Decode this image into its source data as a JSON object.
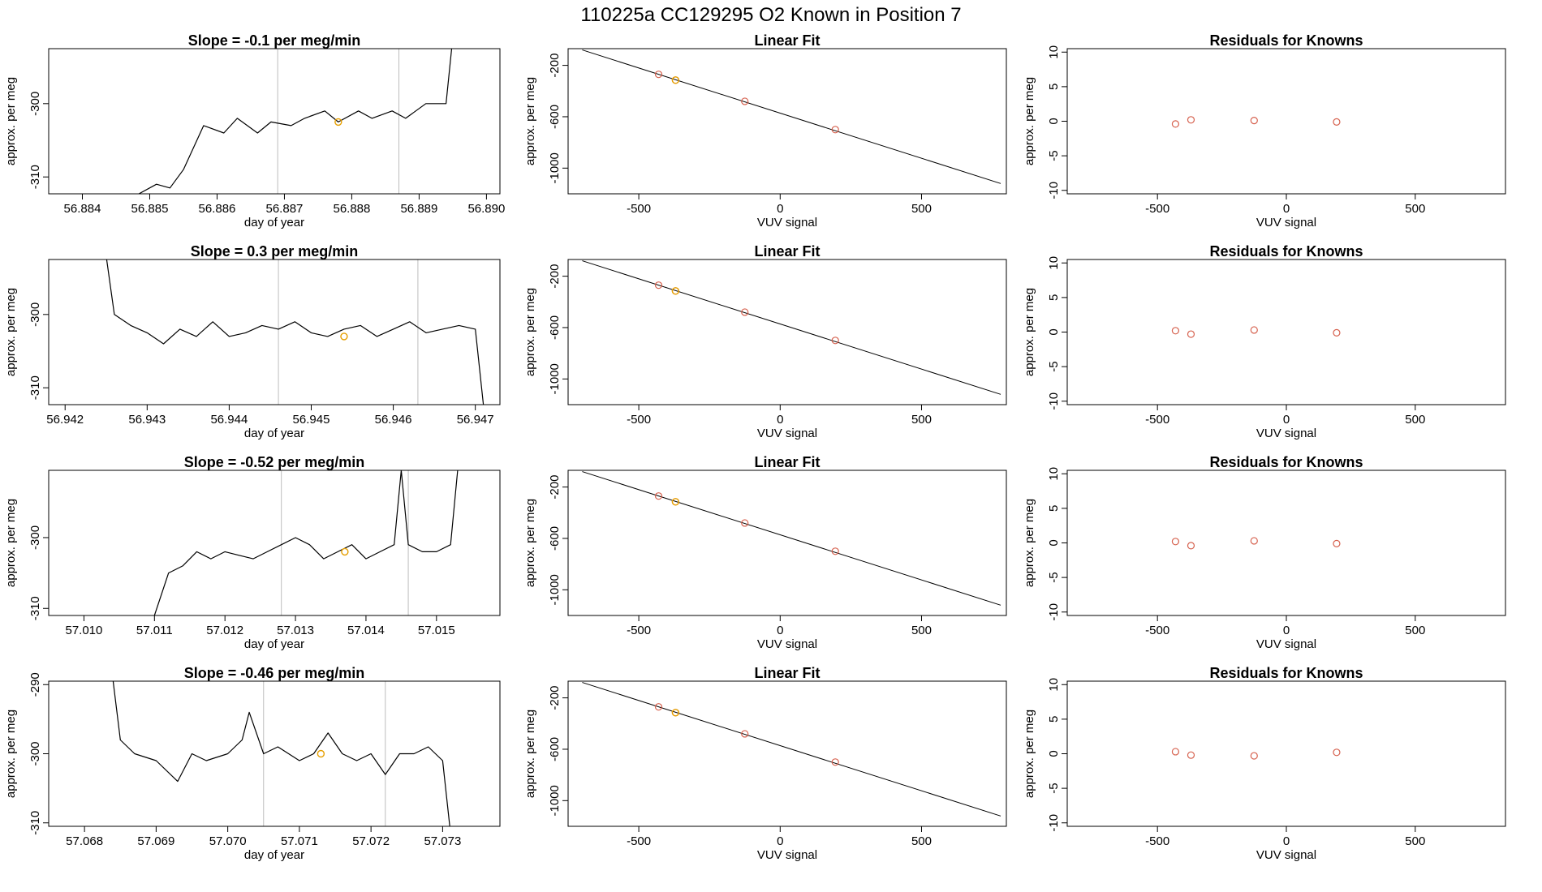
{
  "figure_title": "110225a      CC129295    O2 Known in Position  7",
  "chart_data": [
    {
      "type": "line",
      "title": "Slope =  -0.1  per meg/min",
      "xlabel": "day of year",
      "ylabel": "approx. per meg",
      "xlim": [
        56.8835,
        56.8902
      ],
      "ylim": [
        -312.3,
        -292.5
      ],
      "x_ticks": [
        "56.884",
        "56.885",
        "56.886",
        "56.887",
        "56.888",
        "56.889",
        "56.890"
      ],
      "y_ticks": [
        "-300",
        "-310"
      ],
      "vlines": [
        56.8869,
        56.8887
      ],
      "highlight": {
        "x": 56.8878,
        "y": -302.5,
        "color": "#e69f00"
      },
      "series": [
        {
          "x": [
            56.8848,
            56.8851,
            56.8853,
            56.8855,
            56.8858,
            56.8861,
            56.8863,
            56.8866,
            56.8868,
            56.8871,
            56.8873,
            56.8876,
            56.8878,
            56.8881,
            56.8883,
            56.8886,
            56.8888,
            56.8891,
            56.8894,
            56.8895
          ],
          "y": [
            -312.5,
            -311,
            -311.5,
            -309,
            -303,
            -304,
            -302,
            -304,
            -302.5,
            -303,
            -302,
            -301,
            -302.5,
            -301,
            -302,
            -301,
            -302,
            -300,
            -300,
            -291
          ]
        }
      ]
    },
    {
      "type": "line",
      "title": "Slope =  0.3  per meg/min",
      "xlabel": "day of year",
      "ylabel": "approx. per meg",
      "xlim": [
        56.9418,
        56.9473
      ],
      "ylim": [
        -312.3,
        -292.5
      ],
      "x_ticks": [
        "56.942",
        "56.943",
        "56.944",
        "56.945",
        "56.946",
        "56.947"
      ],
      "y_ticks": [
        "-300",
        "-310"
      ],
      "vlines": [
        56.9446,
        56.9463
      ],
      "highlight": {
        "x": 56.9454,
        "y": -303,
        "color": "#e69f00"
      },
      "series": [
        {
          "x": [
            56.9425,
            56.9426,
            56.9428,
            56.943,
            56.9432,
            56.9434,
            56.9436,
            56.9438,
            56.944,
            56.9442,
            56.9444,
            56.9446,
            56.9448,
            56.945,
            56.9452,
            56.9454,
            56.9456,
            56.9458,
            56.946,
            56.9462,
            56.9464,
            56.9466,
            56.9468,
            56.947,
            56.9471
          ],
          "y": [
            -292,
            -300,
            -301.5,
            -302.5,
            -304,
            -302,
            -303,
            -301,
            -303,
            -302.5,
            -301.5,
            -302,
            -301,
            -302.5,
            -303,
            -302,
            -301.5,
            -303,
            -302,
            -301,
            -302.5,
            -302,
            -301.5,
            -302,
            -312.5
          ]
        }
      ]
    },
    {
      "type": "line",
      "title": "Slope =  -0.52  per meg/min",
      "xlabel": "day of year",
      "ylabel": "approx. per meg",
      "xlim": [
        57.0095,
        57.0159
      ],
      "ylim": [
        -311,
        -290.5
      ],
      "x_ticks": [
        "57.010",
        "57.011",
        "57.012",
        "57.013",
        "57.014",
        "57.015"
      ],
      "y_ticks": [
        "-300",
        "-310"
      ],
      "vlines": [
        57.0128,
        57.0146
      ],
      "highlight": {
        "x": 57.0137,
        "y": -302,
        "color": "#e69f00"
      },
      "series": [
        {
          "x": [
            57.011,
            57.0112,
            57.0114,
            57.0116,
            57.0118,
            57.012,
            57.0122,
            57.0124,
            57.0126,
            57.0128,
            57.013,
            57.0132,
            57.0134,
            57.0136,
            57.0138,
            57.014,
            57.0142,
            57.0144,
            57.0145,
            57.0146,
            57.0148,
            57.015,
            57.0152,
            57.0153
          ],
          "y": [
            -311,
            -305,
            -304,
            -302,
            -303,
            -302,
            -302.5,
            -303,
            -302,
            -301,
            -300,
            -301,
            -303,
            -302,
            -301,
            -303,
            -302,
            -301,
            -290.5,
            -301,
            -302,
            -302,
            -301,
            -290.5
          ]
        }
      ]
    },
    {
      "type": "line",
      "title": "Slope =  -0.46  per meg/min",
      "xlabel": "day of year",
      "ylabel": "approx. per meg",
      "xlim": [
        57.0675,
        57.0738
      ],
      "ylim": [
        -310.5,
        -289.5
      ],
      "x_ticks": [
        "57.068",
        "57.069",
        "57.070",
        "57.071",
        "57.072",
        "57.073"
      ],
      "y_ticks": [
        "-290",
        "-300",
        "-310"
      ],
      "vlines": [
        57.0705,
        57.0722
      ],
      "highlight": {
        "x": 57.0713,
        "y": -300,
        "color": "#e69f00"
      },
      "series": [
        {
          "x": [
            57.0684,
            57.0685,
            57.0687,
            57.069,
            57.0693,
            57.0695,
            57.0697,
            57.07,
            57.0702,
            57.0703,
            57.0705,
            57.0707,
            57.071,
            57.0712,
            57.0714,
            57.0716,
            57.0718,
            57.072,
            57.0722,
            57.0724,
            57.0726,
            57.0728,
            57.073,
            57.0731
          ],
          "y": [
            -289.5,
            -298,
            -300,
            -301,
            -304,
            -300,
            -301,
            -300,
            -298,
            -294,
            -300,
            -299,
            -301,
            -300,
            -297,
            -300,
            -301,
            -300,
            -303,
            -300,
            -300,
            -299,
            -301,
            -310.5
          ]
        }
      ]
    },
    {
      "type": "scatter",
      "title": "Linear Fit",
      "xlabel": "VUV signal",
      "ylabel": "approx. per meg",
      "xlim": [
        -750,
        800
      ],
      "ylim": [
        -1200,
        -70
      ],
      "x_ticks": [
        "-500",
        "0",
        "500"
      ],
      "y_ticks": [
        "-200",
        "-600",
        "-1000"
      ],
      "fit_line": {
        "x": [
          -700,
          780
        ],
        "y": [
          -80,
          -1120
        ]
      },
      "points": [
        {
          "x": -430,
          "y": -270
        },
        {
          "x": -370,
          "y": -315
        },
        {
          "x": -125,
          "y": -480
        },
        {
          "x": 195,
          "y": -700
        }
      ],
      "highlight": {
        "x": -370,
        "y": -315,
        "color": "#e69f00"
      }
    },
    {
      "type": "scatter",
      "title": "Linear Fit",
      "xlabel": "VUV signal",
      "ylabel": "approx. per meg",
      "xlim": [
        -750,
        800
      ],
      "ylim": [
        -1200,
        -70
      ],
      "x_ticks": [
        "-500",
        "0",
        "500"
      ],
      "y_ticks": [
        "-200",
        "-600",
        "-1000"
      ],
      "fit_line": {
        "x": [
          -700,
          780
        ],
        "y": [
          -80,
          -1120
        ]
      },
      "points": [
        {
          "x": -430,
          "y": -270
        },
        {
          "x": -370,
          "y": -315
        },
        {
          "x": -125,
          "y": -480
        },
        {
          "x": 195,
          "y": -700
        }
      ],
      "highlight": {
        "x": -370,
        "y": -315,
        "color": "#e69f00"
      }
    },
    {
      "type": "scatter",
      "title": "Linear Fit",
      "xlabel": "VUV signal",
      "ylabel": "approx. per meg",
      "xlim": [
        -750,
        800
      ],
      "ylim": [
        -1200,
        -70
      ],
      "x_ticks": [
        "-500",
        "0",
        "500"
      ],
      "y_ticks": [
        "-200",
        "-600",
        "-1000"
      ],
      "fit_line": {
        "x": [
          -700,
          780
        ],
        "y": [
          -80,
          -1120
        ]
      },
      "points": [
        {
          "x": -430,
          "y": -270
        },
        {
          "x": -370,
          "y": -315
        },
        {
          "x": -125,
          "y": -480
        },
        {
          "x": 195,
          "y": -700
        }
      ],
      "highlight": {
        "x": -370,
        "y": -315,
        "color": "#e69f00"
      }
    },
    {
      "type": "scatter",
      "title": "Linear Fit",
      "xlabel": "VUV signal",
      "ylabel": "approx. per meg",
      "xlim": [
        -750,
        800
      ],
      "ylim": [
        -1200,
        -70
      ],
      "x_ticks": [
        "-500",
        "0",
        "500"
      ],
      "y_ticks": [
        "-200",
        "-600",
        "-1000"
      ],
      "fit_line": {
        "x": [
          -700,
          780
        ],
        "y": [
          -80,
          -1120
        ]
      },
      "points": [
        {
          "x": -430,
          "y": -270
        },
        {
          "x": -370,
          "y": -315
        },
        {
          "x": -125,
          "y": -480
        },
        {
          "x": 195,
          "y": -700
        }
      ],
      "highlight": {
        "x": -370,
        "y": -315,
        "color": "#e69f00"
      }
    },
    {
      "type": "scatter",
      "title": "Residuals for Knowns",
      "xlabel": "VUV signal",
      "ylabel": "approx. per meg",
      "xlim": [
        -850,
        850
      ],
      "ylim": [
        -10.5,
        10.5
      ],
      "x_ticks": [
        "-500",
        "0",
        "500"
      ],
      "y_ticks": [
        "10",
        "5",
        "0",
        "-5",
        "-10"
      ],
      "points": [
        {
          "x": -430,
          "y": -0.4
        },
        {
          "x": -370,
          "y": 0.2
        },
        {
          "x": -125,
          "y": 0.1
        },
        {
          "x": 195,
          "y": -0.1
        }
      ]
    },
    {
      "type": "scatter",
      "title": "Residuals for Knowns",
      "xlabel": "VUV signal",
      "ylabel": "approx. per meg",
      "xlim": [
        -850,
        850
      ],
      "ylim": [
        -10.5,
        10.5
      ],
      "x_ticks": [
        "-500",
        "0",
        "500"
      ],
      "y_ticks": [
        "10",
        "5",
        "0",
        "-5",
        "-10"
      ],
      "points": [
        {
          "x": -430,
          "y": 0.2
        },
        {
          "x": -370,
          "y": -0.3
        },
        {
          "x": -125,
          "y": 0.3
        },
        {
          "x": 195,
          "y": -0.1
        }
      ]
    },
    {
      "type": "scatter",
      "title": "Residuals for Knowns",
      "xlabel": "VUV signal",
      "ylabel": "approx. per meg",
      "xlim": [
        -850,
        850
      ],
      "ylim": [
        -10.5,
        10.5
      ],
      "x_ticks": [
        "-500",
        "0",
        "500"
      ],
      "y_ticks": [
        "10",
        "5",
        "0",
        "-5",
        "-10"
      ],
      "points": [
        {
          "x": -430,
          "y": 0.2
        },
        {
          "x": -370,
          "y": -0.4
        },
        {
          "x": -125,
          "y": 0.3
        },
        {
          "x": 195,
          "y": -0.1
        }
      ]
    },
    {
      "type": "scatter",
      "title": "Residuals for Knowns",
      "xlabel": "VUV signal",
      "ylabel": "approx. per meg",
      "xlim": [
        -850,
        850
      ],
      "ylim": [
        -10.5,
        10.5
      ],
      "x_ticks": [
        "-500",
        "0",
        "500"
      ],
      "y_ticks": [
        "10",
        "5",
        "0",
        "-5",
        "-10"
      ],
      "points": [
        {
          "x": -430,
          "y": 0.3
        },
        {
          "x": -370,
          "y": -0.2
        },
        {
          "x": -125,
          "y": -0.3
        },
        {
          "x": 195,
          "y": 0.2
        }
      ]
    }
  ],
  "colors": {
    "line": "#000000",
    "point": "#d6604d",
    "highlight": "#e69f00",
    "vline": "#bdbdbd"
  }
}
